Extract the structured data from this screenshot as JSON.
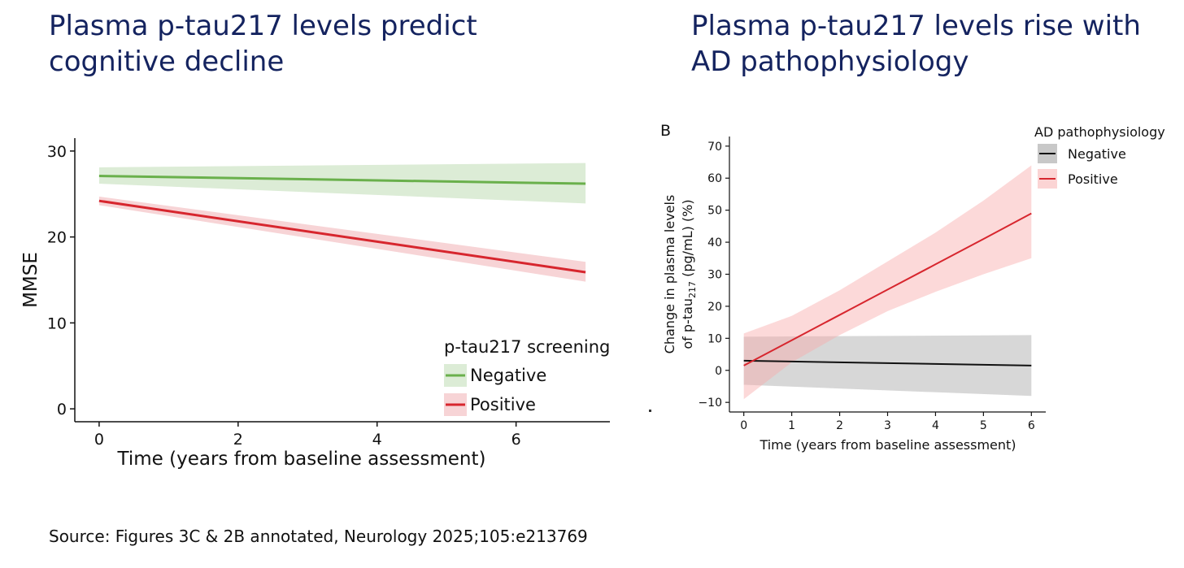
{
  "headings": {
    "left": "Plasma p-tau217 levels predict cognitive decline",
    "right": "Plasma p-tau217 levels rise with AD pathophysiology"
  },
  "source": "Source: Figures 3C & 2B annotated, Neurology 2025;105:e213769",
  "colors": {
    "heading": "#14235f",
    "negative_left": "#6ab04c",
    "positive": "#d7262e",
    "negative_right": "#111111"
  },
  "chart_data": [
    {
      "type": "line",
      "panel_label": "",
      "xlabel": "Time (years from baseline assessment)",
      "ylabel": "MMSE",
      "xlim": [
        -0.35,
        7.35
      ],
      "ylim": [
        -1.5,
        31.5
      ],
      "xticks": [
        0,
        2,
        4,
        6
      ],
      "yticks": [
        0,
        10,
        20,
        30
      ],
      "grid": false,
      "legend": {
        "title": "p-tau217 screening",
        "placement": "bottom-right",
        "entries": [
          "Negative",
          "Positive"
        ]
      },
      "series": [
        {
          "name": "Negative",
          "x": [
            0,
            7
          ],
          "y": [
            27.1,
            26.2
          ],
          "ci_lower": [
            26.2,
            23.9
          ],
          "ci_upper": [
            28.1,
            28.6
          ]
        },
        {
          "name": "Positive",
          "x": [
            0,
            7
          ],
          "y": [
            24.2,
            15.9
          ],
          "ci_lower": [
            23.7,
            14.8
          ],
          "ci_upper": [
            24.7,
            17.1
          ]
        }
      ]
    },
    {
      "type": "line",
      "panel_label": "B",
      "xlabel": "Time (years from baseline assessment)",
      "ylabel_line1": "Change in plasma levels",
      "ylabel_line2_pre": "of p-tau",
      "ylabel_line2_sub": "217",
      "ylabel_line2_post": " (pg/mL) (%)",
      "xlim": [
        -0.3,
        6.3
      ],
      "ylim": [
        -13,
        73
      ],
      "xticks": [
        0,
        1,
        2,
        3,
        4,
        5,
        6
      ],
      "yticks": [
        -10,
        0,
        10,
        20,
        30,
        40,
        50,
        60,
        70
      ],
      "grid": false,
      "legend": {
        "title": "AD pathophysiology",
        "placement": "top-right",
        "entries": [
          "Negative",
          "Positive"
        ]
      },
      "series": [
        {
          "name": "Negative",
          "x": [
            0,
            6
          ],
          "y": [
            3,
            1.5
          ],
          "ci_lower": [
            -4.5,
            -8
          ],
          "ci_upper": [
            10.5,
            11
          ]
        },
        {
          "name": "Positive",
          "x": [
            0,
            1,
            2,
            3,
            4,
            5,
            6
          ],
          "y": [
            1.5,
            9.4,
            17.3,
            25.2,
            33.1,
            41,
            49
          ],
          "ci_lower": [
            -9,
            2.5,
            11,
            18.5,
            24.5,
            30,
            35
          ],
          "ci_upper": [
            11.5,
            17,
            25,
            34,
            43,
            53,
            64
          ]
        }
      ]
    }
  ]
}
